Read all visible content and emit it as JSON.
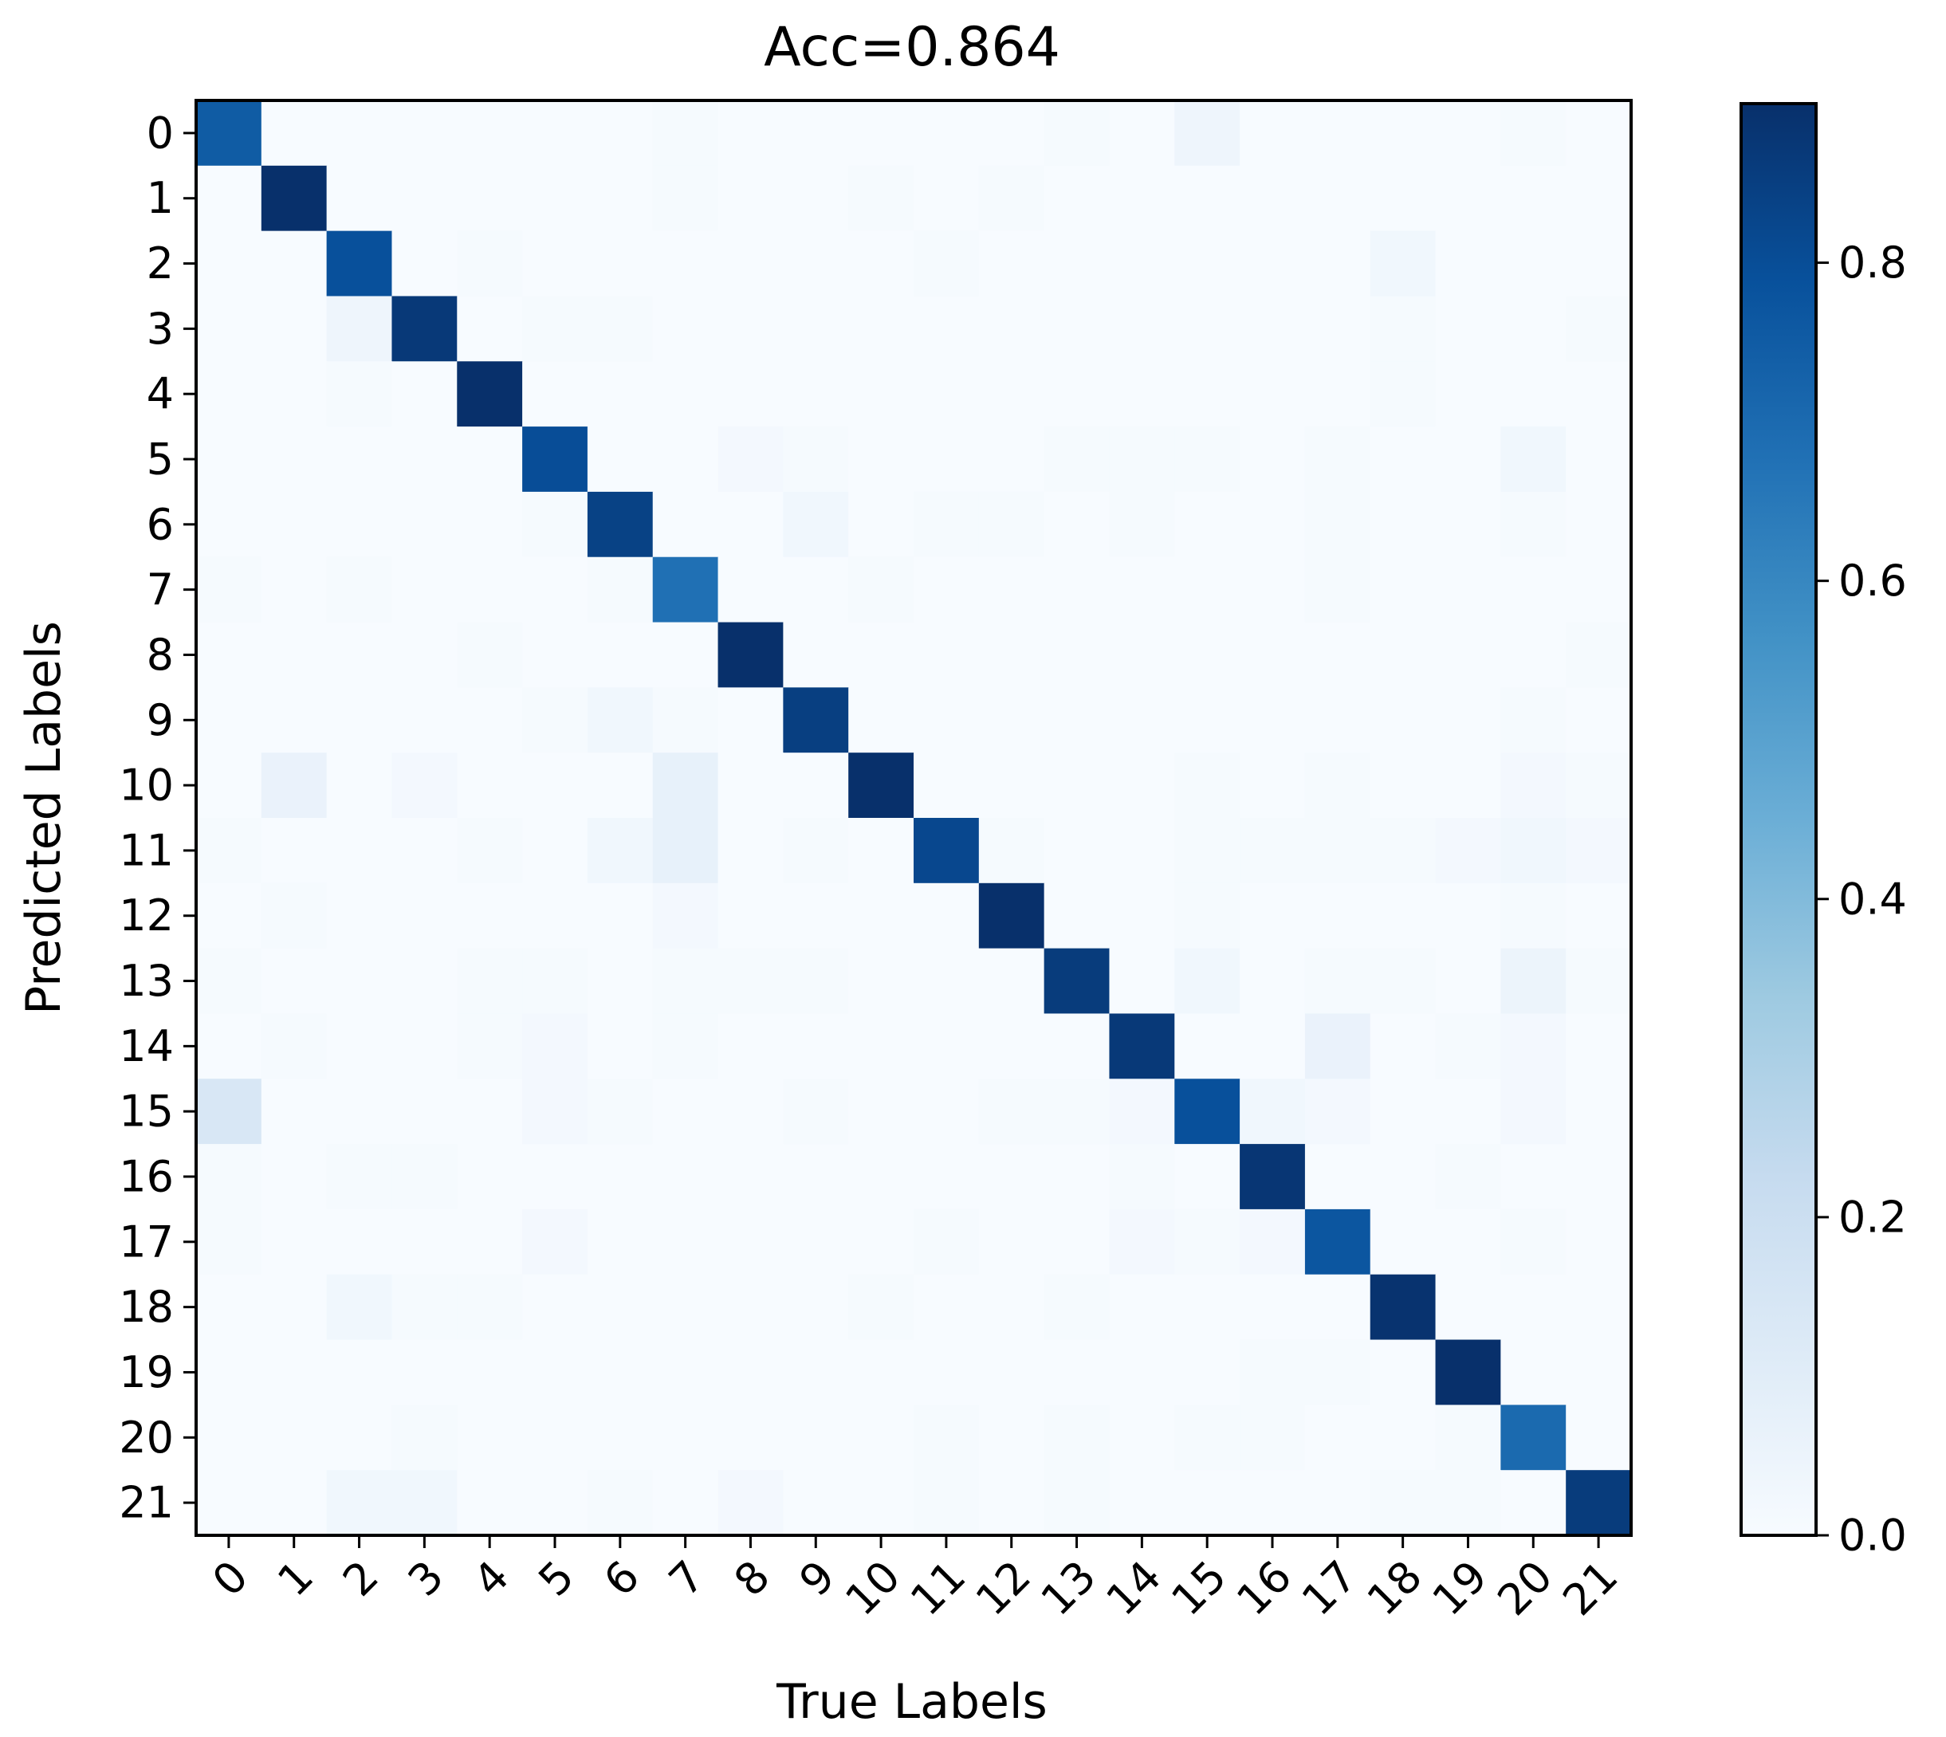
{
  "chart_data": {
    "type": "heatmap",
    "title": "Acc=0.864",
    "xlabel": "True Labels",
    "ylabel": "Predicted Labels",
    "x_tick_labels": [
      "0",
      "1",
      "2",
      "3",
      "4",
      "5",
      "6",
      "7",
      "8",
      "9",
      "10",
      "11",
      "12",
      "13",
      "14",
      "15",
      "16",
      "17",
      "18",
      "19",
      "20",
      "21"
    ],
    "y_tick_labels": [
      "0",
      "1",
      "2",
      "3",
      "4",
      "5",
      "6",
      "7",
      "8",
      "9",
      "10",
      "11",
      "12",
      "13",
      "14",
      "15",
      "16",
      "17",
      "18",
      "19",
      "20",
      "21"
    ],
    "colormap": "Blues",
    "colorbar": {
      "range": [
        0.0,
        0.9
      ],
      "ticks": [
        0.0,
        0.2,
        0.4,
        0.6,
        0.8
      ],
      "tick_labels": [
        "0.0",
        "0.2",
        "0.4",
        "0.6",
        "0.8"
      ]
    },
    "matrix": [
      [
        0.75,
        0,
        0,
        0,
        0,
        0,
        0,
        0.01,
        0,
        0,
        0,
        0,
        0,
        0.01,
        0,
        0.04,
        0,
        0,
        0,
        0,
        0.01,
        0
      ],
      [
        0,
        0.9,
        0,
        0,
        0,
        0,
        0,
        0.01,
        0,
        0,
        0.01,
        0,
        0.01,
        0,
        0,
        0,
        0,
        0,
        0,
        0,
        0,
        0
      ],
      [
        0,
        0,
        0.79,
        0,
        0.01,
        0,
        0,
        0,
        0,
        0,
        0,
        0.01,
        0,
        0,
        0,
        0,
        0,
        0,
        0.03,
        0,
        0,
        0
      ],
      [
        0,
        0,
        0.04,
        0.87,
        0,
        0.01,
        0.01,
        0,
        0,
        0,
        0,
        0,
        0,
        0,
        0,
        0,
        0,
        0,
        0.01,
        0,
        0,
        0.01
      ],
      [
        0,
        0,
        0.01,
        0,
        0.9,
        0,
        0,
        0,
        0,
        0,
        0,
        0,
        0,
        0,
        0,
        0,
        0,
        0,
        0.01,
        0,
        0,
        0
      ],
      [
        0,
        0,
        0,
        0,
        0,
        0.8,
        0,
        0,
        0.02,
        0.01,
        0,
        0,
        0,
        0.01,
        0.01,
        0.01,
        0,
        0.01,
        0,
        0,
        0.03,
        0
      ],
      [
        0,
        0,
        0,
        0,
        0,
        0.01,
        0.84,
        0,
        0,
        0.03,
        0,
        0.01,
        0.01,
        0,
        0.01,
        0,
        0,
        0.01,
        0,
        0,
        0.01,
        0
      ],
      [
        0.01,
        0,
        0.01,
        0,
        0,
        0,
        0.01,
        0.68,
        0,
        0,
        0.01,
        0,
        0,
        0,
        0,
        0,
        0,
        0.01,
        0,
        0,
        0,
        0
      ],
      [
        0,
        0,
        0,
        0,
        0.01,
        0,
        0,
        0,
        0.9,
        0,
        0,
        0,
        0,
        0,
        0,
        0,
        0,
        0,
        0,
        0,
        0,
        0.01
      ],
      [
        0,
        0,
        0,
        0,
        0,
        0.01,
        0.03,
        0.01,
        0,
        0.85,
        0,
        0,
        0,
        0,
        0,
        0,
        0,
        0,
        0,
        0,
        0.01,
        0
      ],
      [
        0,
        0.06,
        0,
        0.02,
        0,
        0,
        0,
        0.07,
        0,
        0,
        0.9,
        0,
        0,
        0,
        0,
        0.01,
        0,
        0.01,
        0,
        0,
        0.02,
        0.01
      ],
      [
        0.01,
        0,
        0,
        0,
        0.01,
        0,
        0.03,
        0.07,
        0,
        0.01,
        0,
        0.82,
        0.01,
        0,
        0,
        0.01,
        0.01,
        0.01,
        0.01,
        0.02,
        0.03,
        0.02
      ],
      [
        0,
        0.01,
        0,
        0,
        0,
        0,
        0,
        0.02,
        0,
        0,
        0,
        0,
        0.9,
        0,
        0,
        0.01,
        0,
        0,
        0,
        0,
        0.01,
        0
      ],
      [
        0.01,
        0,
        0,
        0,
        0.01,
        0.01,
        0,
        0.01,
        0.01,
        0.01,
        0,
        0,
        0,
        0.86,
        0,
        0.03,
        0,
        0.01,
        0.01,
        0,
        0.05,
        0.01
      ],
      [
        0,
        0.01,
        0,
        0,
        0.01,
        0.02,
        0,
        0.01,
        0,
        0,
        0,
        0,
        0,
        0,
        0.87,
        0,
        0,
        0.06,
        0,
        0.01,
        0.02,
        0
      ],
      [
        0.14,
        0,
        0,
        0,
        0,
        0.02,
        0.01,
        0,
        0,
        0.01,
        0,
        0,
        0.01,
        0.01,
        0.02,
        0.79,
        0.03,
        0.02,
        0,
        0,
        0.02,
        0
      ],
      [
        0.01,
        0,
        0.01,
        0.01,
        0,
        0,
        0,
        0,
        0,
        0,
        0,
        0,
        0,
        0,
        0.01,
        0,
        0.88,
        0,
        0,
        0.01,
        0,
        0
      ],
      [
        0.01,
        0,
        0,
        0,
        0,
        0.02,
        0,
        0,
        0,
        0,
        0,
        0.01,
        0,
        0,
        0.02,
        0.01,
        0.02,
        0.77,
        0,
        0,
        0.01,
        0
      ],
      [
        0,
        0,
        0.03,
        0.01,
        0.01,
        0,
        0,
        0,
        0,
        0,
        0.01,
        0,
        0,
        0.01,
        0,
        0,
        0,
        0,
        0.89,
        0,
        0,
        0
      ],
      [
        0,
        0,
        0,
        0,
        0,
        0,
        0,
        0,
        0,
        0,
        0,
        0,
        0,
        0,
        0,
        0,
        0.01,
        0.01,
        0,
        0.9,
        0,
        0
      ],
      [
        0,
        0,
        0,
        0.01,
        0,
        0,
        0,
        0,
        0,
        0,
        0,
        0.01,
        0,
        0.01,
        0,
        0.01,
        0.01,
        0,
        0,
        0.01,
        0.7,
        0
      ],
      [
        0,
        0,
        0.03,
        0.03,
        0,
        0,
        0.01,
        0,
        0.02,
        0,
        0,
        0.01,
        0,
        0.01,
        0,
        0,
        0,
        0,
        0.01,
        0.01,
        0,
        0.86
      ]
    ]
  }
}
